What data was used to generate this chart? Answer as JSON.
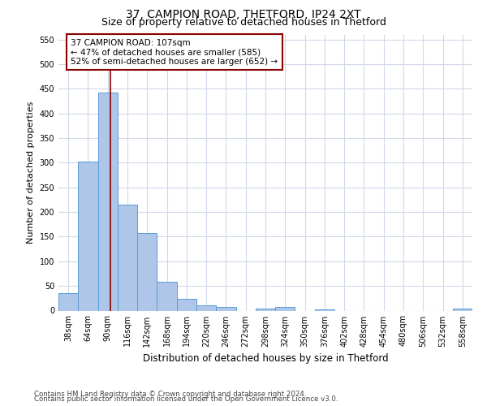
{
  "title": "37, CAMPION ROAD, THETFORD, IP24 2XT",
  "subtitle": "Size of property relative to detached houses in Thetford",
  "xlabel": "Distribution of detached houses by size in Thetford",
  "ylabel": "Number of detached properties",
  "footnote1": "Contains HM Land Registry data © Crown copyright and database right 2024.",
  "footnote2": "Contains public sector information licensed under the Open Government Licence v3.0.",
  "categories": [
    "38sqm",
    "64sqm",
    "90sqm",
    "116sqm",
    "142sqm",
    "168sqm",
    "194sqm",
    "220sqm",
    "246sqm",
    "272sqm",
    "298sqm",
    "324sqm",
    "350sqm",
    "376sqm",
    "402sqm",
    "428sqm",
    "454sqm",
    "480sqm",
    "506sqm",
    "532sqm",
    "558sqm"
  ],
  "values": [
    36,
    303,
    443,
    215,
    157,
    58,
    24,
    10,
    8,
    0,
    4,
    7,
    0,
    3,
    0,
    0,
    0,
    0,
    0,
    0,
    4
  ],
  "bar_color": "#aec6e8",
  "bar_edge_color": "#5b9bd5",
  "vline_x": 2.65,
  "vline_color": "#8B0000",
  "annotation_text": "37 CAMPION ROAD: 107sqm\n← 47% of detached houses are smaller (585)\n52% of semi-detached houses are larger (652) →",
  "annotation_box_color": "#ffffff",
  "annotation_box_edgecolor": "#8B0000",
  "ylim": [
    0,
    560
  ],
  "yticks": [
    0,
    50,
    100,
    150,
    200,
    250,
    300,
    350,
    400,
    450,
    500,
    550
  ],
  "bg_color": "#ffffff",
  "grid_color": "#d0d8e8",
  "title_fontsize": 10,
  "subtitle_fontsize": 9,
  "xlabel_fontsize": 8.5,
  "ylabel_fontsize": 8,
  "tick_fontsize": 7,
  "annot_fontsize": 7.5
}
